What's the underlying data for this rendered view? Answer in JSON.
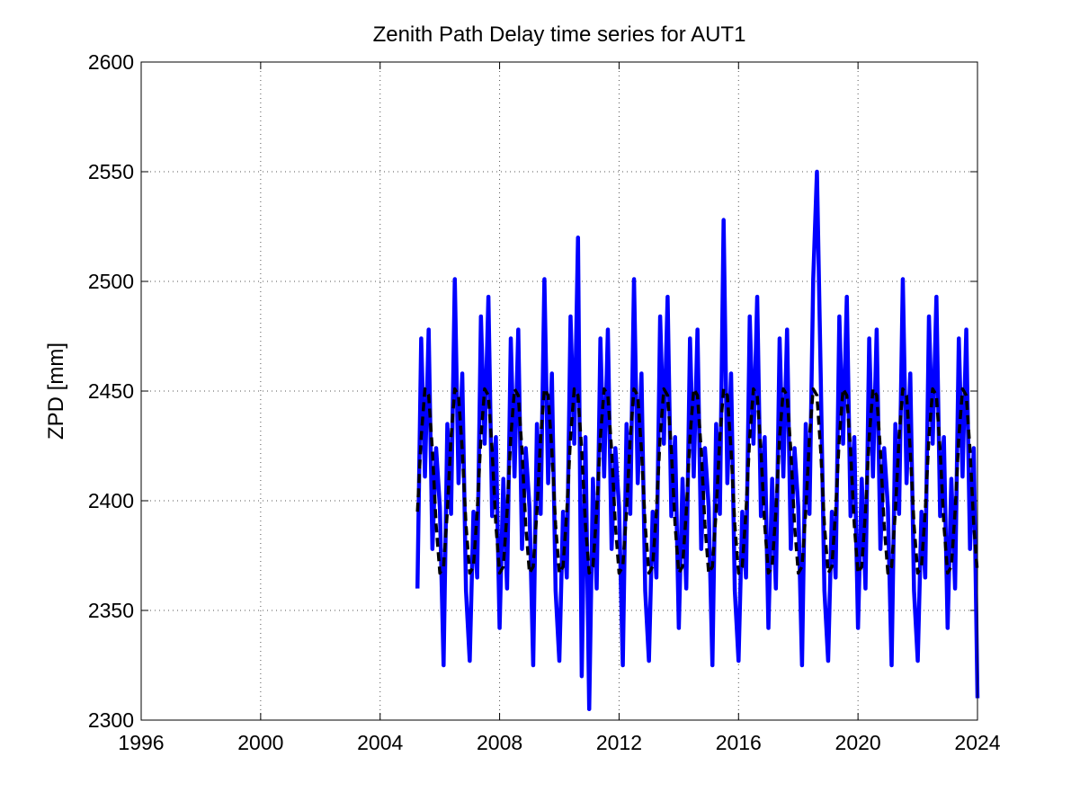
{
  "chart_data": {
    "type": "line",
    "title": "Zenith Path Delay time series for AUT1",
    "y_label": "ZPD [mm]",
    "x": [
      2005.25,
      2005.375,
      2005.5,
      2005.625,
      2005.75,
      2005.875,
      2006,
      2006.125,
      2006.25,
      2006.375,
      2006.5,
      2006.625,
      2006.75,
      2006.875,
      2007,
      2007.125,
      2007.25,
      2007.375,
      2007.5,
      2007.625,
      2007.75,
      2007.875,
      2008,
      2008.125,
      2008.25,
      2008.375,
      2008.5,
      2008.625,
      2008.75,
      2008.875,
      2009,
      2009.125,
      2009.25,
      2009.375,
      2009.5,
      2009.625,
      2009.75,
      2009.875,
      2010,
      2010.125,
      2010.25,
      2010.375,
      2010.5,
      2010.625,
      2010.75,
      2010.875,
      2011,
      2011.125,
      2011.25,
      2011.375,
      2011.5,
      2011.625,
      2011.75,
      2011.875,
      2012,
      2012.125,
      2012.25,
      2012.375,
      2012.5,
      2012.625,
      2012.75,
      2012.875,
      2013,
      2013.125,
      2013.25,
      2013.375,
      2013.5,
      2013.625,
      2013.75,
      2013.875,
      2014,
      2014.125,
      2014.25,
      2014.375,
      2014.5,
      2014.625,
      2014.75,
      2014.875,
      2015,
      2015.125,
      2015.25,
      2015.375,
      2015.5,
      2015.625,
      2015.75,
      2015.875,
      2016,
      2016.125,
      2016.25,
      2016.375,
      2016.5,
      2016.625,
      2016.75,
      2016.875,
      2017,
      2017.125,
      2017.25,
      2017.375,
      2017.5,
      2017.625,
      2017.75,
      2017.875,
      2018,
      2018.125,
      2018.25,
      2018.375,
      2018.5,
      2018.625,
      2018.75,
      2018.875,
      2019,
      2019.125,
      2019.25,
      2019.375,
      2019.5,
      2019.625,
      2019.75,
      2019.875,
      2020,
      2020.125,
      2020.25,
      2020.375,
      2020.5,
      2020.625,
      2020.75,
      2020.875,
      2021,
      2021.125,
      2021.25,
      2021.375,
      2021.5,
      2021.625,
      2021.75,
      2021.875,
      2022,
      2022.125,
      2022.25,
      2022.375,
      2022.5,
      2022.625,
      2022.75,
      2022.875,
      2023,
      2023.125,
      2023.25,
      2023.375,
      2023.5,
      2023.625,
      2023.75,
      2023.875,
      2024
    ],
    "series": [
      {
        "color": "#0000ff",
        "values": [
          2360,
          2474,
          2411,
          2478,
          2378,
          2424,
          2397,
          2325,
          2435,
          2394,
          2501,
          2408,
          2458,
          2359,
          2327,
          2395,
          2365,
          2484,
          2426,
          2493,
          2393,
          2429,
          2342,
          2410,
          2360,
          2474,
          2411,
          2478,
          2378,
          2424,
          2397,
          2325,
          2435,
          2394,
          2501,
          2408,
          2458,
          2359,
          2327,
          2395,
          2365,
          2484,
          2426,
          2520,
          2320,
          2429,
          2305,
          2410,
          2360,
          2474,
          2411,
          2478,
          2378,
          2424,
          2397,
          2325,
          2435,
          2394,
          2501,
          2408,
          2458,
          2359,
          2327,
          2395,
          2365,
          2484,
          2426,
          2493,
          2393,
          2429,
          2342,
          2410,
          2360,
          2474,
          2411,
          2478,
          2378,
          2424,
          2397,
          2325,
          2435,
          2394,
          2528,
          2408,
          2458,
          2359,
          2327,
          2395,
          2365,
          2484,
          2426,
          2493,
          2393,
          2429,
          2342,
          2410,
          2360,
          2474,
          2411,
          2478,
          2378,
          2424,
          2397,
          2325,
          2435,
          2394,
          2501,
          2550,
          2458,
          2359,
          2327,
          2395,
          2365,
          2484,
          2426,
          2493,
          2393,
          2429,
          2342,
          2410,
          2360,
          2474,
          2411,
          2478,
          2378,
          2424,
          2397,
          2325,
          2435,
          2394,
          2501,
          2408,
          2458,
          2359,
          2327,
          2395,
          2365,
          2484,
          2426,
          2493,
          2393,
          2429,
          2342,
          2410,
          2360,
          2474,
          2411,
          2478,
          2378,
          2424,
          2310
        ]
      },
      {
        "color": "#000000",
        "dashed": true,
        "values": [
          2395,
          2429,
          2451,
          2448,
          2423,
          2389,
          2367,
          2370,
          2395,
          2429,
          2451,
          2448,
          2423,
          2389,
          2367,
          2370,
          2395,
          2429,
          2451,
          2448,
          2423,
          2389,
          2367,
          2370,
          2395,
          2429,
          2451,
          2448,
          2423,
          2389,
          2367,
          2370,
          2395,
          2429,
          2451,
          2448,
          2423,
          2389,
          2367,
          2370,
          2395,
          2429,
          2451,
          2448,
          2423,
          2389,
          2367,
          2370,
          2395,
          2429,
          2451,
          2448,
          2423,
          2389,
          2367,
          2370,
          2395,
          2429,
          2451,
          2448,
          2423,
          2389,
          2367,
          2370,
          2395,
          2429,
          2451,
          2448,
          2423,
          2389,
          2367,
          2370,
          2395,
          2429,
          2451,
          2448,
          2423,
          2389,
          2367,
          2370,
          2395,
          2429,
          2451,
          2448,
          2423,
          2389,
          2367,
          2370,
          2395,
          2429,
          2451,
          2448,
          2423,
          2389,
          2367,
          2370,
          2395,
          2429,
          2451,
          2448,
          2423,
          2389,
          2367,
          2370,
          2395,
          2429,
          2451,
          2448,
          2423,
          2389,
          2367,
          2370,
          2395,
          2429,
          2451,
          2448,
          2423,
          2389,
          2367,
          2370,
          2395,
          2429,
          2451,
          2448,
          2423,
          2389,
          2367,
          2370,
          2395,
          2429,
          2451,
          2448,
          2423,
          2389,
          2367,
          2370,
          2395,
          2429,
          2451,
          2448,
          2423,
          2389,
          2367,
          2370,
          2395,
          2429,
          2451,
          2448,
          2423,
          2389,
          2367
        ]
      }
    ],
    "xlim": [
      1996,
      2024
    ],
    "xticks": [
      1996,
      2000,
      2004,
      2008,
      2012,
      2016,
      2020,
      2024
    ],
    "ylim": [
      2300,
      2600
    ],
    "yticks": [
      2300,
      2350,
      2400,
      2450,
      2500,
      2550,
      2600
    ],
    "grid": true
  }
}
